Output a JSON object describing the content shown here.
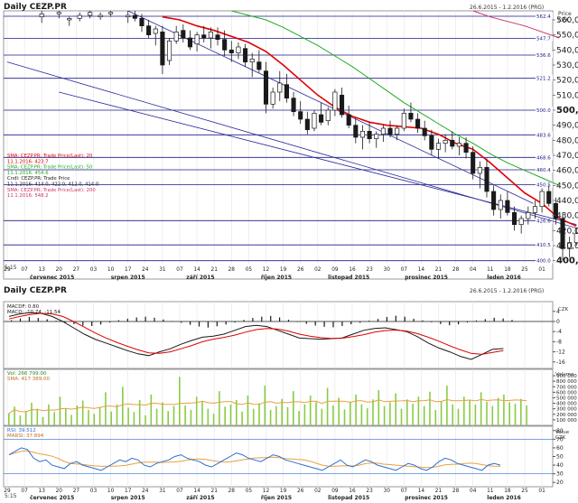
{
  "top": {
    "title": "Daily CEZP.PR",
    "date_range": "26.6.2015 - 1.2.2016 (PRG)",
    "price_hdr": "Price",
    "currency": "CZK",
    "scale_label": "5:15"
  },
  "bottom": {
    "title": "Daily CEZP.PR",
    "date_range": "26.6.2015 - 1.2.2016 (PRG)",
    "scale_label": "5:15"
  },
  "colors": {
    "candle_body": "#1a1a1a",
    "sma20": "#e00000",
    "sma50": "#22aa22",
    "sma200": "#cc3366",
    "trend": "#2a2a9a",
    "hline": "#1a1a8a",
    "arrow": "#1f9fe0",
    "vol_bar": "#88cc44",
    "vol_ma": "#e8a040",
    "rsi": "#2c6fd0",
    "rsi_ma": "#e8a040",
    "grid": "#e4e4e4"
  },
  "legend": [
    {
      "text": "SMA: CEZP.PR: Trade Price(Last): 20",
      "color": "#e00000"
    },
    {
      "text": "11.1.2016: 423.7",
      "color": "#e00000"
    },
    {
      "text": "SMA: CEZP.PR: Trade Price(Last): 50",
      "color": "#22aa22"
    },
    {
      "text": "11.1.2016: 454.6",
      "color": "#22aa22"
    },
    {
      "text": "Cndl: CEZP.PR: Trade Price",
      "color": "#1a1a1a"
    },
    {
      "text": "11.1.2016: 414.0, 422.0, 412.0, 414.0",
      "color": "#1a1a1a"
    },
    {
      "text": "SMA: CEZP.PR: Trade Price(Last): 200",
      "color": "#cc3366"
    },
    {
      "text": "11.1.2016: 548.2",
      "color": "#cc3366"
    }
  ],
  "price_axis": [
    {
      "label": "560,0",
      "bold": false
    },
    {
      "label": "550,0",
      "bold": false
    },
    {
      "label": "540,0",
      "bold": false
    },
    {
      "label": "530,0",
      "bold": false
    },
    {
      "label": "520,0",
      "bold": false
    },
    {
      "label": "510,0",
      "bold": false
    },
    {
      "label": "500,0",
      "bold": true
    },
    {
      "label": "490,0",
      "bold": false
    },
    {
      "label": "480,0",
      "bold": false
    },
    {
      "label": "470,0",
      "bold": false
    },
    {
      "label": "460,0",
      "bold": false
    },
    {
      "label": "450,0",
      "bold": false
    },
    {
      "label": "440,0",
      "bold": false
    },
    {
      "label": "430,0",
      "bold": false
    },
    {
      "label": "420,0",
      "bold": false
    },
    {
      "label": "410,0",
      "bold": false
    },
    {
      "label": "400,0",
      "bold": true
    }
  ],
  "hlines": [
    {
      "value": 562.4,
      "label": "562.4"
    },
    {
      "value": 547.7,
      "label": "547.7"
    },
    {
      "value": 536.6,
      "label": "536.6"
    },
    {
      "value": 521.2,
      "label": "521.2"
    },
    {
      "value": 500.0,
      "label": "500.0"
    },
    {
      "value": 483.6,
      "label": "483.6"
    },
    {
      "value": 468.6,
      "label": "468.6"
    },
    {
      "value": 460.4,
      "label": "460.4"
    },
    {
      "value": 450.5,
      "label": "450.5"
    },
    {
      "value": 426.6,
      "label": "426.6"
    },
    {
      "value": 410.5,
      "label": "410.5"
    },
    {
      "value": 400.0,
      "label": "400.0"
    }
  ],
  "x_days": [
    "29",
    "07",
    "13",
    "20",
    "27",
    "03",
    "10",
    "17",
    "24",
    "31",
    "07",
    "14",
    "21",
    "28",
    "05",
    "12",
    "19",
    "26",
    "02",
    "09",
    "16",
    "23",
    "30",
    "07",
    "14",
    "21",
    "28",
    "04",
    "11",
    "18",
    "25",
    "01"
  ],
  "x_months": [
    "červenec 2015",
    "srpen 2015",
    "září 2015",
    "říjen 2015",
    "listopad 2015",
    "prosinec 2015",
    "leden 2016"
  ],
  "macd": {
    "label1": "MACDF: 0.80",
    "label2": "MACD: -10.74, -11.54",
    "currency": "CZK",
    "axis": [
      "4",
      "0",
      "-4",
      "-8",
      "-12",
      "-16"
    ]
  },
  "volume": {
    "label1": "Vol: 266 799.00",
    "label2": "SMA: 417 389.00",
    "hdr": "Volume",
    "axis": [
      "900 000",
      "800 000",
      "700 000",
      "600 000",
      "500 000",
      "400 000",
      "300 000",
      "200 000",
      "100 000"
    ]
  },
  "rsi": {
    "label1": "RSI: 39.512",
    "label2": "MARSI: 37.894",
    "hdr": "Value",
    "currency": "CZK",
    "axis": [
      "80",
      "70",
      "60",
      "50",
      "40",
      "30",
      "20"
    ]
  },
  "chart_data": {
    "type": "candlestick",
    "title": "Daily CEZP.PR",
    "ylim": [
      398,
      566
    ],
    "points": [
      [
        2.0,
        562,
        566,
        558,
        564
      ],
      [
        3.0,
        564,
        566,
        561,
        565
      ],
      [
        3.6,
        560,
        562,
        556,
        561
      ],
      [
        4.2,
        561,
        565,
        559,
        563
      ],
      [
        4.8,
        563,
        566,
        561,
        565
      ],
      [
        5.4,
        562,
        565,
        560,
        563
      ],
      [
        6.0,
        564,
        566,
        562,
        565
      ],
      [
        7.0,
        562,
        566,
        558,
        563
      ],
      [
        7.4,
        563,
        566,
        559,
        561
      ],
      [
        7.8,
        561,
        564,
        552,
        556
      ],
      [
        8.2,
        556,
        560,
        548,
        550
      ],
      [
        8.6,
        551,
        556,
        543,
        554
      ],
      [
        9.0,
        552,
        556,
        524,
        530
      ],
      [
        9.4,
        533,
        548,
        530,
        546
      ],
      [
        9.8,
        546,
        556,
        544,
        552
      ],
      [
        10.2,
        553,
        557,
        545,
        548
      ],
      [
        10.6,
        548,
        553,
        540,
        542
      ],
      [
        11.0,
        544,
        552,
        539,
        550
      ],
      [
        11.4,
        550,
        556,
        545,
        548
      ],
      [
        11.8,
        548,
        555,
        541,
        552
      ],
      [
        12.2,
        550,
        555,
        543,
        547
      ],
      [
        12.6,
        547,
        553,
        536,
        540
      ],
      [
        13.0,
        540,
        546,
        532,
        538
      ],
      [
        13.4,
        538,
        545,
        534,
        542
      ],
      [
        13.8,
        541,
        544,
        529,
        532
      ],
      [
        14.2,
        532,
        538,
        522,
        534
      ],
      [
        14.6,
        532,
        540,
        525,
        527
      ],
      [
        15.0,
        526,
        532,
        498,
        504
      ],
      [
        15.4,
        504,
        515,
        501,
        512
      ],
      [
        15.8,
        512,
        526,
        506,
        518
      ],
      [
        16.2,
        517,
        524,
        505,
        508
      ],
      [
        16.6,
        508,
        512,
        496,
        499
      ],
      [
        17.0,
        499,
        506,
        491,
        494
      ],
      [
        17.4,
        494,
        499,
        484,
        487
      ],
      [
        17.8,
        488,
        500,
        486,
        498
      ],
      [
        18.2,
        497,
        505,
        490,
        492
      ],
      [
        18.6,
        493,
        502,
        490,
        500
      ],
      [
        19.0,
        500,
        514,
        496,
        512
      ],
      [
        19.4,
        510,
        515,
        495,
        497
      ],
      [
        19.8,
        497,
        503,
        488,
        490
      ],
      [
        20.2,
        490,
        495,
        478,
        482
      ],
      [
        20.6,
        482,
        490,
        474,
        486
      ],
      [
        21.0,
        486,
        492,
        478,
        481
      ],
      [
        21.4,
        481,
        486,
        475,
        484
      ],
      [
        21.8,
        484,
        490,
        479,
        488
      ],
      [
        22.2,
        488,
        493,
        482,
        484
      ],
      [
        22.6,
        484,
        490,
        480,
        488
      ],
      [
        23.0,
        488,
        501,
        486,
        498
      ],
      [
        23.4,
        498,
        505,
        492,
        494
      ],
      [
        23.8,
        494,
        498,
        485,
        488
      ],
      [
        24.2,
        488,
        493,
        480,
        483
      ],
      [
        24.6,
        483,
        487,
        470,
        474
      ],
      [
        25.0,
        474,
        481,
        468,
        478
      ],
      [
        25.4,
        478,
        484,
        472,
        480
      ],
      [
        25.8,
        480,
        486,
        474,
        476
      ],
      [
        26.2,
        476,
        482,
        470,
        478
      ],
      [
        26.6,
        478,
        482,
        468,
        472
      ],
      [
        27.0,
        472,
        476,
        454,
        458
      ],
      [
        27.4,
        458,
        466,
        448,
        462
      ],
      [
        27.8,
        462,
        468,
        442,
        446
      ],
      [
        28.2,
        446,
        450,
        430,
        434
      ],
      [
        28.6,
        434,
        444,
        428,
        440
      ],
      [
        29.0,
        440,
        446,
        430,
        432
      ],
      [
        29.4,
        432,
        436,
        420,
        424
      ],
      [
        29.8,
        424,
        430,
        418,
        428
      ],
      [
        30.2,
        428,
        436,
        424,
        432
      ],
      [
        30.6,
        432,
        440,
        428,
        436
      ],
      [
        31.0,
        436,
        448,
        432,
        446
      ],
      [
        31.4,
        446,
        450,
        436,
        438
      ],
      [
        31.8,
        438,
        442,
        424,
        428
      ],
      [
        32.2,
        428,
        432,
        400,
        408
      ],
      [
        32.6,
        408,
        416,
        402,
        412
      ],
      [
        33.0,
        412,
        422,
        410,
        418
      ]
    ],
    "series": [
      {
        "name": "SMA 20",
        "color": "#e00000",
        "values": [
          [
            9.0,
            562
          ],
          [
            10.0,
            560
          ],
          [
            11.0,
            556
          ],
          [
            12.0,
            553
          ],
          [
            13.0,
            549
          ],
          [
            14.0,
            545
          ],
          [
            15.0,
            539
          ],
          [
            16.0,
            530
          ],
          [
            17.0,
            520
          ],
          [
            18.0,
            510
          ],
          [
            19.0,
            502
          ],
          [
            20.0,
            496
          ],
          [
            21.0,
            492
          ],
          [
            22.0,
            490
          ],
          [
            23.0,
            489
          ],
          [
            24.0,
            488
          ],
          [
            25.0,
            484
          ],
          [
            26.0,
            478
          ],
          [
            27.0,
            474
          ],
          [
            28.0,
            465
          ],
          [
            29.0,
            455
          ],
          [
            30.0,
            445
          ],
          [
            31.0,
            438
          ],
          [
            32.0,
            428
          ],
          [
            33.0,
            423
          ]
        ]
      },
      {
        "name": "SMA 50",
        "color": "#22aa22",
        "values": [
          [
            13.0,
            566
          ],
          [
            14.0,
            563
          ],
          [
            15.0,
            560
          ],
          [
            16.0,
            555
          ],
          [
            17.0,
            549
          ],
          [
            18.0,
            543
          ],
          [
            19.0,
            536
          ],
          [
            20.0,
            529
          ],
          [
            21.0,
            521
          ],
          [
            22.0,
            513
          ],
          [
            23.0,
            505
          ],
          [
            24.0,
            498
          ],
          [
            25.0,
            491
          ],
          [
            26.0,
            484
          ],
          [
            27.0,
            478
          ],
          [
            28.0,
            471
          ],
          [
            29.0,
            465
          ],
          [
            30.0,
            460
          ],
          [
            31.0,
            455
          ],
          [
            32.0,
            450
          ]
        ]
      },
      {
        "name": "SMA 200",
        "color": "#cc3366",
        "values": [
          [
            27.0,
            566
          ],
          [
            28.0,
            562
          ],
          [
            29.0,
            559
          ],
          [
            30.0,
            556
          ],
          [
            31.0,
            552
          ],
          [
            32.0,
            548
          ]
        ]
      }
    ]
  }
}
